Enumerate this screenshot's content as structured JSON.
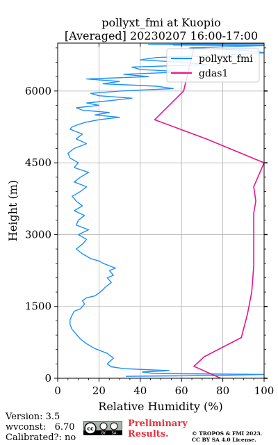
{
  "chart_data": {
    "type": "line",
    "title": "pollyxt_fmi at Kuopio",
    "subtitle": "[Averaged] 20230207 16:00-17:00",
    "xlabel": "Relative Humidity (%)",
    "ylabel": "Height (m)",
    "xlim": [
      0,
      100
    ],
    "ylim": [
      0,
      7000
    ],
    "xticks": [
      0,
      20,
      40,
      60,
      80,
      100
    ],
    "yticks": [
      0,
      1500,
      3000,
      4500,
      6000
    ],
    "grid": true,
    "legend_position": "top-right",
    "series": [
      {
        "name": "pollyxt_fmi",
        "color": "#1f8fff",
        "x": [
          33,
          80,
          100,
          46,
          41,
          54,
          32,
          26,
          24,
          27,
          24,
          18,
          14,
          11,
          9,
          7,
          6,
          6,
          7,
          8,
          11,
          13,
          12,
          14,
          18,
          20,
          22,
          23,
          26,
          24,
          27,
          25,
          28,
          22,
          20,
          16,
          12,
          9,
          12,
          14,
          10,
          15,
          9,
          10,
          13,
          8,
          12,
          9,
          7,
          11,
          14,
          8,
          11,
          15,
          8,
          10,
          6,
          5,
          8,
          14,
          9,
          12,
          6,
          7,
          10,
          14,
          20,
          30,
          18,
          25,
          12,
          9,
          20,
          14,
          26,
          36,
          20,
          16,
          30,
          56,
          48,
          22,
          30,
          14,
          44,
          32,
          62,
          40,
          36,
          72,
          60,
          40,
          48,
          82,
          100,
          90,
          64,
          100,
          56,
          70,
          44,
          100,
          88,
          100,
          60,
          100,
          80
        ],
        "y": [
          40,
          60,
          80,
          100,
          130,
          160,
          200,
          240,
          300,
          420,
          520,
          620,
          720,
          820,
          920,
          1020,
          1120,
          1220,
          1320,
          1400,
          1450,
          1550,
          1620,
          1680,
          1720,
          1780,
          1850,
          1900,
          2000,
          2100,
          2150,
          2250,
          2300,
          2400,
          2450,
          2500,
          2600,
          2700,
          2800,
          2900,
          3000,
          3100,
          3200,
          3300,
          3400,
          3500,
          3600,
          3700,
          3800,
          3900,
          4000,
          4100,
          4200,
          4300,
          4400,
          4500,
          4600,
          4700,
          4800,
          4900,
          5000,
          5100,
          5200,
          5250,
          5300,
          5350,
          5400,
          5450,
          5500,
          5550,
          5600,
          5650,
          5700,
          5750,
          5800,
          5850,
          5900,
          5950,
          6000,
          6050,
          6100,
          6150,
          6200,
          6250,
          6300,
          6350,
          6400,
          6450,
          6500,
          6550,
          6600,
          6650,
          6700,
          6750,
          6800,
          6850,
          6900,
          6950,
          6960,
          6970,
          6975,
          6980,
          6985,
          6990,
          6993,
          6996,
          7000
        ]
      },
      {
        "name": "gdas1",
        "color": "#e8158a",
        "x": [
          79,
          66,
          71,
          89,
          92,
          94,
          95,
          95,
          95,
          96,
          95,
          100,
          72,
          47,
          61,
          66
        ],
        "y": [
          0,
          250,
          450,
          850,
          1350,
          1800,
          2350,
          2900,
          3450,
          3700,
          4000,
          4500,
          5000,
          5400,
          6000,
          6900
        ]
      }
    ]
  },
  "footer": {
    "version": "Version: 3.5",
    "wvconst": "wvconst:   6.70",
    "calibrated": "Calibrated?: no",
    "preliminary_line1": "Preliminary",
    "preliminary_line2": "Results.",
    "copyright_line1": "© TROPOS & FMI 2023.",
    "copyright_line2": "CC BY SA 4.0 License."
  }
}
